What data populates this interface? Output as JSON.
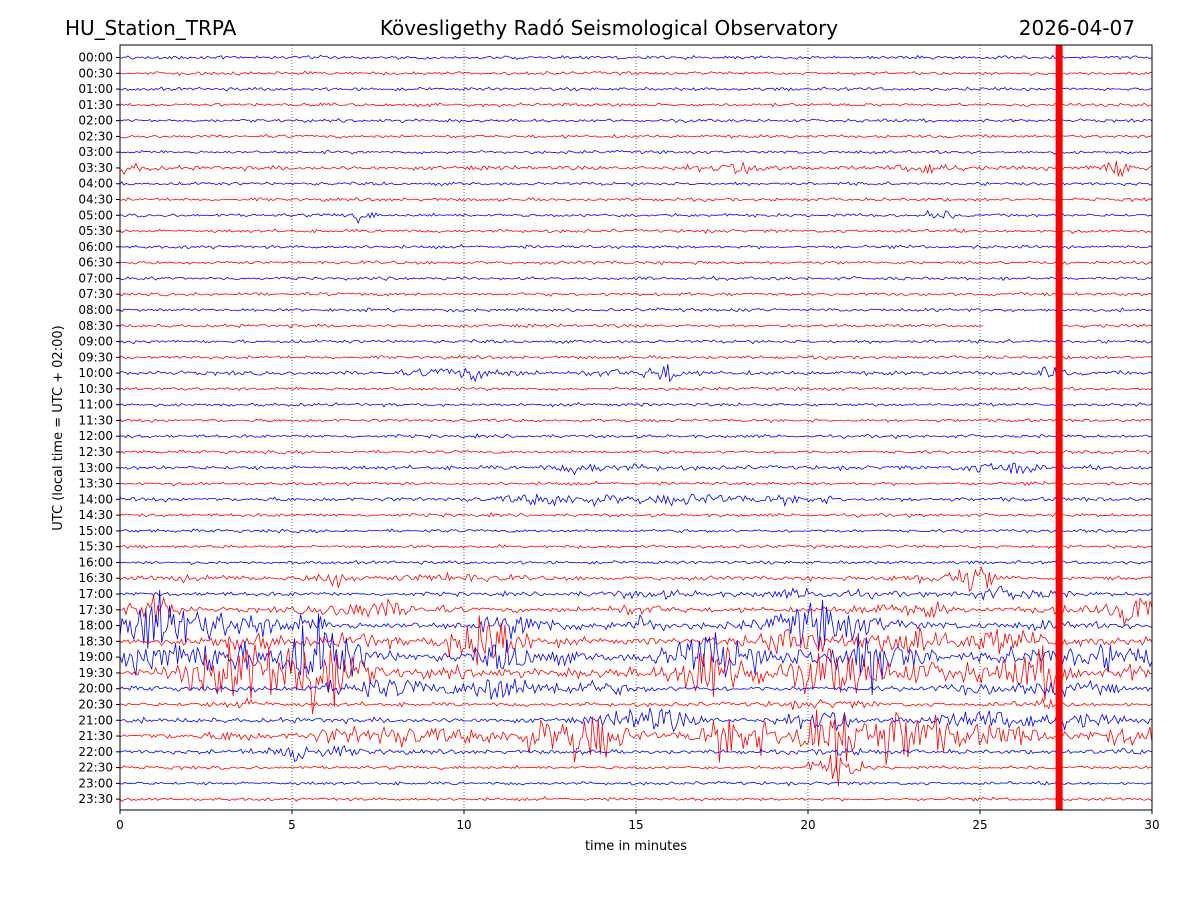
{
  "header": {
    "station": "HU_Station_TRPA",
    "observatory": "Kövesligethy Radó Seismological Observatory",
    "date": "2026-04-07"
  },
  "chart_data": {
    "type": "line",
    "title": "Kövesligethy Radó Seismological Observatory",
    "xlabel": "time in minutes",
    "ylabel": "UTC (local time = UTC + 02:00)",
    "xlim": [
      0,
      30
    ],
    "xticks": [
      0,
      5,
      10,
      15,
      20,
      25,
      30
    ],
    "x_gridlines": "dotted vertical at 5-minute intervals",
    "row_labels": [
      "00:00",
      "00:30",
      "01:00",
      "01:30",
      "02:00",
      "02:30",
      "03:00",
      "03:30",
      "04:00",
      "04:30",
      "05:00",
      "05:30",
      "06:00",
      "06:30",
      "07:00",
      "07:30",
      "08:00",
      "08:30",
      "09:00",
      "09:30",
      "10:00",
      "10:30",
      "11:00",
      "11:30",
      "12:00",
      "12:30",
      "13:00",
      "13:30",
      "14:00",
      "14:30",
      "15:00",
      "15:30",
      "16:00",
      "16:30",
      "17:00",
      "17:30",
      "18:00",
      "18:30",
      "19:00",
      "19:30",
      "20:00",
      "20:30",
      "21:00",
      "21:30",
      "22:00",
      "22:30",
      "23:00",
      "23:30"
    ],
    "row_colors": [
      "#0000ff",
      "#ff0000"
    ],
    "marker_line": {
      "x": 27.3,
      "color": "#ff0000",
      "description": "current time marker"
    },
    "data_gap": {
      "row": "08:30",
      "x_start": 25.1,
      "x_end": 27.3
    },
    "row_activity": [
      1,
      1,
      1,
      1,
      1,
      1,
      1,
      2,
      1,
      1,
      1,
      1,
      1,
      1,
      1,
      1,
      1,
      1,
      1,
      1,
      2,
      1,
      1,
      1,
      1,
      1,
      2,
      1,
      2,
      1,
      1,
      1,
      1,
      2,
      2,
      3,
      5,
      5,
      6,
      6,
      3,
      2,
      3,
      4,
      2,
      1,
      1,
      1
    ],
    "seismic_events": [
      {
        "time": "03:30",
        "x": 29.0,
        "strength": 2
      },
      {
        "time": "05:00",
        "x": 7.0,
        "strength": 1
      },
      {
        "time": "05:00",
        "x": 23.8,
        "strength": 1
      },
      {
        "time": "10:00",
        "x": 15.8,
        "strength": 2
      },
      {
        "time": "13:00",
        "x": 26.0,
        "strength": 2
      },
      {
        "time": "16:30",
        "x": 6.2,
        "strength": 2
      },
      {
        "time": "16:30",
        "x": 24.8,
        "strength": 2
      },
      {
        "time": "17:30",
        "x": 1.0,
        "strength": 3
      },
      {
        "time": "17:30",
        "x": 29.6,
        "strength": 3
      },
      {
        "time": "18:00",
        "x": 1.0,
        "strength": 5
      },
      {
        "time": "18:30",
        "x": 10.5,
        "strength": 4
      },
      {
        "time": "19:00",
        "x": 22.0,
        "strength": 6
      },
      {
        "time": "19:00",
        "x": 5.8,
        "strength": 5
      },
      {
        "time": "19:30",
        "x": 5.9,
        "strength": 6
      },
      {
        "time": "19:30",
        "x": 17.0,
        "strength": 4
      },
      {
        "time": "20:00",
        "x": 11.0,
        "strength": 3
      },
      {
        "time": "21:00",
        "x": 20.5,
        "strength": 3
      },
      {
        "time": "21:30",
        "x": 20.7,
        "strength": 7
      },
      {
        "time": "21:30",
        "x": 22.9,
        "strength": 6
      },
      {
        "time": "21:30",
        "x": 13.5,
        "strength": 4
      },
      {
        "time": "21:30",
        "x": 17.9,
        "strength": 5
      },
      {
        "time": "22:00",
        "x": 5.3,
        "strength": 2
      },
      {
        "time": "22:30",
        "x": 20.8,
        "strength": 3
      }
    ]
  }
}
